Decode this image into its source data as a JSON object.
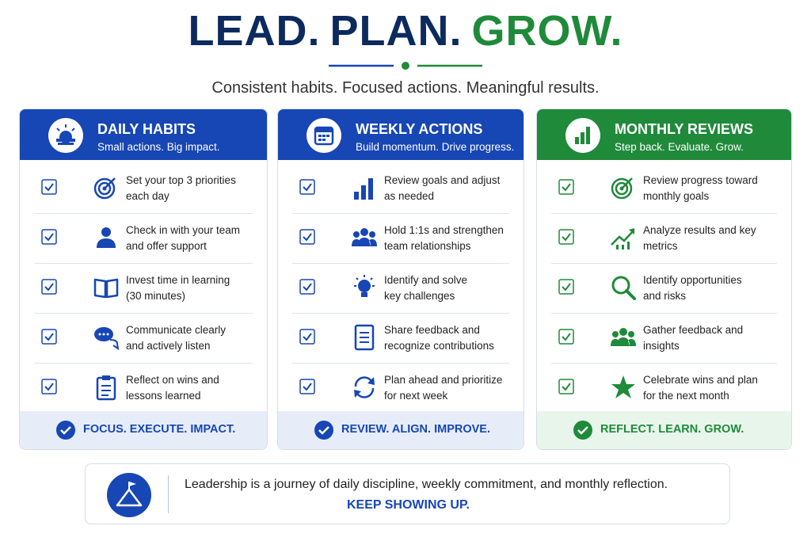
{
  "header": {
    "title": [
      "LEAD.",
      "PLAN.",
      "GROW."
    ],
    "subtitle": "Consistent habits. Focused actions. Meaningful results."
  },
  "columns": [
    {
      "title": "DAILY HABITS",
      "subtitle": "Small actions. Big impact.",
      "items": [
        [
          "Set your top 3 priorities",
          "each day"
        ],
        [
          "Check in with your team",
          "and offer support"
        ],
        [
          "Invest time in learning",
          "(30 minutes)"
        ],
        [
          "Communicate clearly",
          "and actively listen"
        ],
        [
          "Reflect on wins and",
          "lessons learned"
        ]
      ],
      "footer": "FOCUS. EXECUTE. IMPACT."
    },
    {
      "title": "WEEKLY ACTIONS",
      "subtitle": "Build momentum. Drive progress.",
      "items": [
        [
          "Review goals and adjust",
          "as needed"
        ],
        [
          "Hold 1:1s and strengthen",
          "team relationships"
        ],
        [
          "Identify and solve",
          "key challenges"
        ],
        [
          "Share feedback and",
          "recognize contributions"
        ],
        [
          "Plan ahead and prioritize",
          "for next week"
        ]
      ],
      "footer": "REVIEW. ALIGN. IMPROVE."
    },
    {
      "title": "MONTHLY REVIEWS",
      "subtitle": "Step back. Evaluate. Grow.",
      "items": [
        [
          "Review progress toward",
          "monthly goals"
        ],
        [
          "Analyze results and key",
          "metrics"
        ],
        [
          "Identify opportunities",
          "and risks"
        ],
        [
          "Gather feedback and",
          "insights"
        ],
        [
          "Celebrate wins and plan",
          "for the next month"
        ]
      ],
      "footer": "REFLECT. LEARN. GROW."
    }
  ],
  "banner": {
    "text": "Leadership is a journey of daily discipline, weekly commitment, and monthly reflection.",
    "callout": "KEEP SHOWING UP."
  }
}
